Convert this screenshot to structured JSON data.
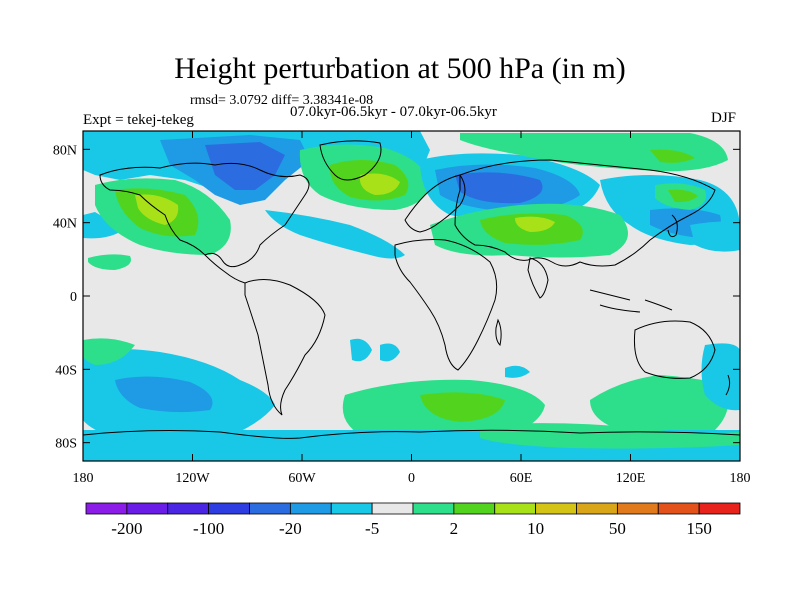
{
  "title": "Height perturbation at 500 hPa (in m)",
  "stats": "rmsd= 3.0792 diff= 3.38341e-08",
  "expt": "Expt = tekej-tekeg",
  "case": "07.0kyr-06.5kyr - 07.0kyr-06.5kyr",
  "season": "DJF",
  "colors": {
    "land_fill": "#e8e8e8",
    "ocean_bg": "#ffffff",
    "light_cyan": "#19c8e6",
    "mid_blue": "#1f9be5",
    "blue": "#2b6de0",
    "light_green": "#2ddf8a",
    "green": "#52d41f",
    "yellow_green": "#a9e119"
  },
  "map": {
    "lon_ticks": [
      "180",
      "120W",
      "60W",
      "0",
      "60E",
      "120E",
      "180"
    ],
    "lat_ticks": [
      "80N",
      "40N",
      "0",
      "40S",
      "80S"
    ]
  },
  "colorbar": {
    "colors": [
      "#8c1de8",
      "#6a1de6",
      "#4b25e4",
      "#2e3de2",
      "#2b6de0",
      "#1f9be5",
      "#19c8e6",
      "#e8e8e8",
      "#2ddf8a",
      "#52d41f",
      "#a9e119",
      "#d4c416",
      "#d9a61a",
      "#e07a1c",
      "#e4521c",
      "#e8221c"
    ],
    "labels": [
      "-200",
      "-100",
      "-20",
      "-5",
      "2",
      "10",
      "50",
      "150"
    ]
  }
}
